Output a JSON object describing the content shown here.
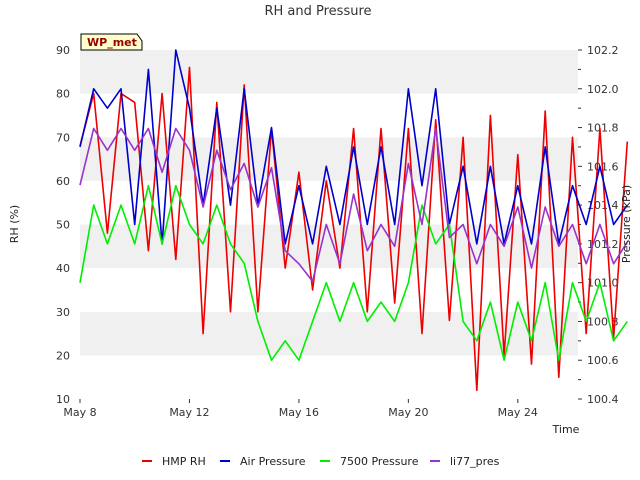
{
  "chart_data": {
    "type": "line",
    "title": "RH and Pressure",
    "xlabel": "Time",
    "ylabel_left": "RH (%)",
    "ylabel_right": "Pressure (kPa)",
    "badge": "WP_met",
    "x_start_day": 8,
    "x_step_days": 0.5,
    "x_ticks": [
      {
        "day": 8,
        "label": "May 8"
      },
      {
        "day": 12,
        "label": "May 12"
      },
      {
        "day": 16,
        "label": "May 16"
      },
      {
        "day": 20,
        "label": "May 20"
      },
      {
        "day": 24,
        "label": "May 24"
      }
    ],
    "x_range_days": [
      8,
      26.2
    ],
    "y_left_range": [
      10,
      90
    ],
    "y_left_ticks": [
      "10",
      "20",
      "30",
      "40",
      "50",
      "60",
      "70",
      "80",
      "90"
    ],
    "y_right_range": [
      100.4,
      102.2
    ],
    "y_right_ticks": [
      "100.4",
      "100.6",
      "100.8",
      "101.0",
      "101.2",
      "101.4",
      "101.6",
      "101.8",
      "102.0",
      "102.2"
    ],
    "grid": "horizontal-bands",
    "legend_position": "bottom",
    "series": [
      {
        "name": "HMP RH",
        "color": "#ee0000",
        "axis": "left",
        "values": [
          68,
          80,
          48,
          80,
          78,
          44,
          80,
          42,
          86,
          25,
          78,
          30,
          82,
          30,
          72,
          40,
          62,
          35,
          60,
          40,
          72,
          30,
          72,
          32,
          72,
          25,
          74,
          28,
          70,
          12,
          75,
          20,
          66,
          18,
          76,
          15,
          70,
          25,
          72,
          24,
          69
        ]
      },
      {
        "name": "Air Pressure",
        "color": "#0000cc",
        "axis": "right",
        "values": [
          101.7,
          102.0,
          101.9,
          102.0,
          101.3,
          102.1,
          101.2,
          102.2,
          101.9,
          101.4,
          101.9,
          101.4,
          102.0,
          101.4,
          101.8,
          101.2,
          101.5,
          101.2,
          101.6,
          101.3,
          101.7,
          101.3,
          101.7,
          101.3,
          102.0,
          101.5,
          102.0,
          101.3,
          101.6,
          101.2,
          101.6,
          101.2,
          101.5,
          101.2,
          101.7,
          101.2,
          101.5,
          101.3,
          101.6,
          101.3,
          101.4
        ]
      },
      {
        "name": "7500 Pressure",
        "color": "#00ee00",
        "axis": "right",
        "values": [
          101.0,
          101.4,
          101.2,
          101.4,
          101.2,
          101.5,
          101.2,
          101.5,
          101.3,
          101.2,
          101.4,
          101.2,
          101.1,
          100.8,
          100.6,
          100.7,
          100.6,
          100.8,
          101.0,
          100.8,
          101.0,
          100.8,
          100.9,
          100.8,
          101.0,
          101.4,
          101.2,
          101.3,
          100.8,
          100.7,
          100.9,
          100.6,
          100.9,
          100.7,
          101.0,
          100.6,
          101.0,
          100.8,
          101.0,
          100.7,
          100.8
        ]
      },
      {
        "name": "li77_pres",
        "color": "#9933cc",
        "axis": "left",
        "values": [
          59,
          72,
          67,
          72,
          67,
          72,
          62,
          72,
          67,
          54,
          67,
          58,
          64,
          54,
          63,
          44,
          41,
          37,
          50,
          41,
          57,
          44,
          50,
          45,
          64,
          50,
          72,
          47,
          50,
          41,
          50,
          45,
          54,
          40,
          54,
          45,
          50,
          41,
          50,
          41,
          46
        ]
      }
    ]
  }
}
